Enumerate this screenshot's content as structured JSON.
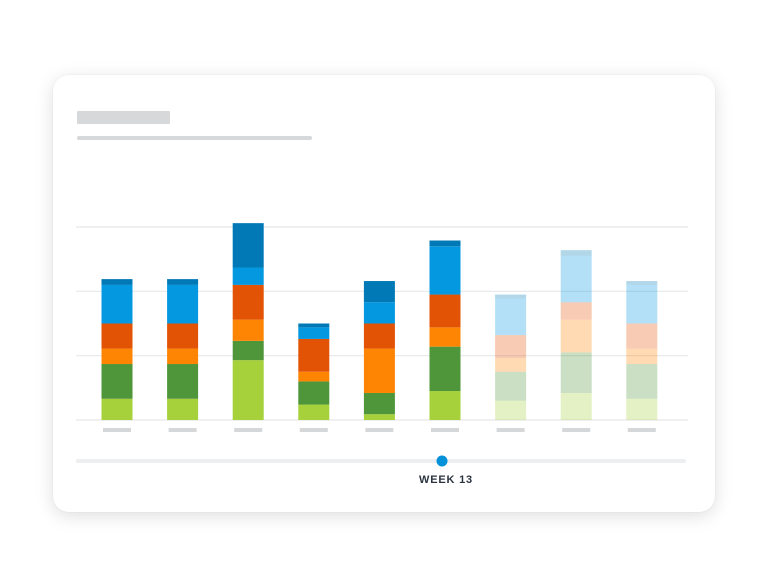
{
  "chart_data": {
    "type": "bar",
    "stacked": true,
    "title": "",
    "xlabel": "",
    "ylabel": "",
    "grid": true,
    "gridline_count": 3,
    "ylim": [
      0,
      100
    ],
    "categories": [
      "",
      "",
      "",
      "",
      "",
      "",
      "",
      "",
      ""
    ],
    "highlighted_count": 6,
    "series": [
      {
        "color": "#a6d13a",
        "values": [
          11,
          11,
          31,
          8,
          3,
          15,
          10,
          14,
          11
        ]
      },
      {
        "color": "#4f9539",
        "values": [
          18,
          18,
          10,
          12,
          11,
          23,
          15,
          21,
          18
        ]
      },
      {
        "color": "#fe8503",
        "values": [
          8,
          8,
          11,
          5,
          23,
          10,
          7,
          17,
          8
        ]
      },
      {
        "color": "#e35305",
        "values": [
          13,
          13,
          18,
          17,
          13,
          17,
          12,
          9,
          13
        ]
      },
      {
        "color": "#0398e0",
        "values": [
          20,
          20,
          9,
          6,
          11,
          25,
          19,
          24,
          20
        ]
      },
      {
        "color": "#0179b7",
        "values": [
          3,
          3,
          23,
          2,
          11,
          3,
          2,
          3,
          2
        ]
      }
    ],
    "colors": {
      "grid": "#e6e8ea",
      "tick_placeholder": "#d5d7d9",
      "slider_track": "#eceef0",
      "slider_handle": "#0591da",
      "label": "#2b3541"
    }
  },
  "slider": {
    "label": "WEEK 13",
    "position": 0.6
  }
}
